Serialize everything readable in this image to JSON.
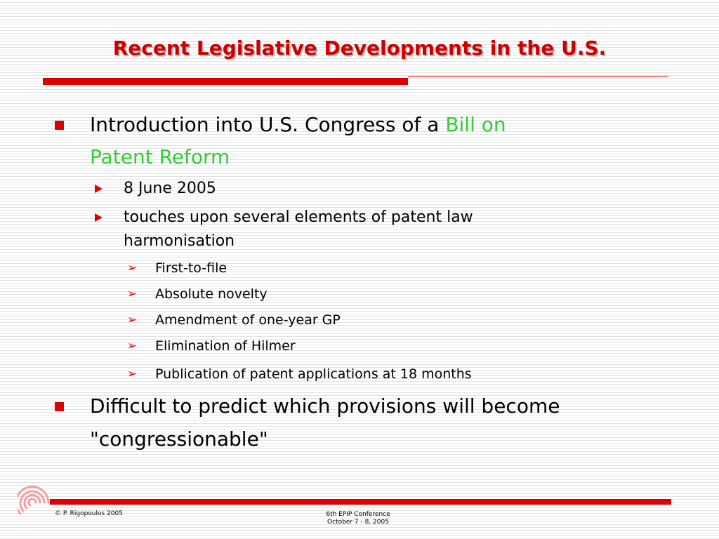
{
  "title": "Recent Legislative Developments in the U.S.",
  "colors": {
    "accent": "#dd0000",
    "title": "#cc0000",
    "highlight": "#33cc33"
  },
  "bullets": {
    "b1": {
      "text_start": "Introduction into U.S. Congress of a ",
      "highlight_line1": "Bill on",
      "highlight_line2": "Patent Reform"
    },
    "sub1": "8 June 2005",
    "sub2_line1": "touches upon several elements of patent law",
    "sub2_line2": "harmonisation",
    "items": [
      "First-to-file",
      "Absolute novelty",
      "Amendment of one-year GP",
      "Elimination of Hilmer",
      "Publication of patent applications at 18 months"
    ],
    "b2_line1": "Difficult to predict which provisions will become",
    "b2_line2": "\"congressionable\""
  },
  "footer": {
    "copyright": "© P. Rigopoulos 2005",
    "conference_line1": "6th EPIP Conference",
    "conference_line2": "October 7 - 8, 2005"
  },
  "logo_icon": "spiral-logo-icon"
}
